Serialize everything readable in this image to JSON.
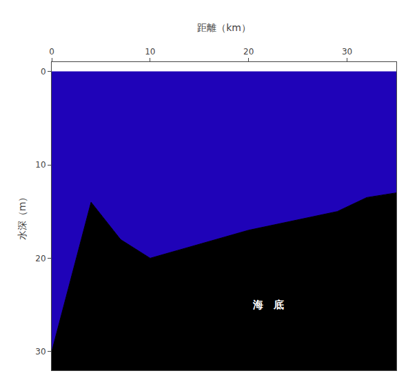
{
  "chart_data": {
    "type": "area",
    "xlabel": "距離（km）",
    "ylabel": "水深（m）",
    "x": [
      0,
      4,
      7,
      10,
      20,
      29,
      32,
      35
    ],
    "values": [
      30,
      14,
      18,
      20,
      17,
      15,
      13.5,
      13
    ],
    "colors": [
      "#1f03b8",
      "#000000"
    ],
    "xlim": [
      0,
      35
    ],
    "ylim": [
      32,
      -1
    ],
    "xticks": [
      0,
      10,
      20,
      30
    ],
    "yticks": [
      0,
      10,
      20,
      30
    ],
    "grid": false,
    "annotations": [
      {
        "text": "海　底",
        "x": 22,
        "y": 25,
        "color": "#ffffff"
      }
    ]
  }
}
